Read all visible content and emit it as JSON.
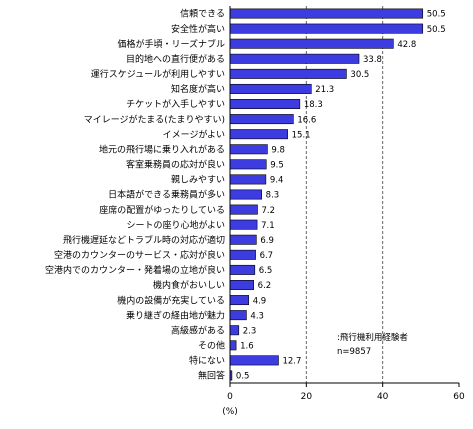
{
  "chart_data": {
    "type": "bar",
    "orientation": "horizontal",
    "categories": [
      "信頼できる",
      "安全性が高い",
      "価格が手頃・リーズナブル",
      "目的地への直行便がある",
      "運行スケジュールが利用しやすい",
      "知名度が高い",
      "チケットが入手しやすい",
      "マイレージがたまる(たまりやすい)",
      "イメージがよい",
      "地元の飛行場に乗り入れがある",
      "客室乗務員の応対が良い",
      "親しみやすい",
      "日本語ができる乗務員が多い",
      "座席の配置がゆったりしている",
      "シートの座り心地がよい",
      "飛行機遅延などトラブル時の対応が適切",
      "空港のカウンターのサービス・応対が良い",
      "空港内でのカウンター・発着場の立地が良い",
      "機内食がおいしい",
      "機内の設備が充実している",
      "乗り継ぎの経由地が魅力",
      "高級感がある",
      "その他",
      "特にない",
      "無回答"
    ],
    "values": [
      50.5,
      50.5,
      42.8,
      33.8,
      30.5,
      21.3,
      18.3,
      16.6,
      15.1,
      9.8,
      9.5,
      9.4,
      8.3,
      7.2,
      7.1,
      6.9,
      6.7,
      6.5,
      6.2,
      4.9,
      4.3,
      2.3,
      1.6,
      12.7,
      0.5
    ],
    "value_labels": [
      "50.5",
      "50.5",
      "42.8",
      "33.8",
      "30.5",
      "21.3",
      "18.3",
      "16.6",
      "15.1",
      "9.8",
      "9.5",
      "9.4",
      "8.3",
      "7.2",
      "7.1",
      "6.9",
      "6.7",
      "6.5",
      "6.2",
      "4.9",
      "4.3",
      "2.3",
      "1.6",
      "12.7",
      "0.5"
    ],
    "xlim": [
      0,
      60
    ],
    "xticks": [
      0,
      20,
      40,
      60
    ],
    "xtick_labels": [
      "0",
      "20",
      "40",
      "60"
    ],
    "xlabel": "(%)",
    "gridlines": "dashed vertical at 20, 40",
    "annotation": [
      ":飛行機利用経験者",
      "n=9857"
    ],
    "bar_color": "#3c3ce0",
    "bar_edge_color": "#000000"
  }
}
